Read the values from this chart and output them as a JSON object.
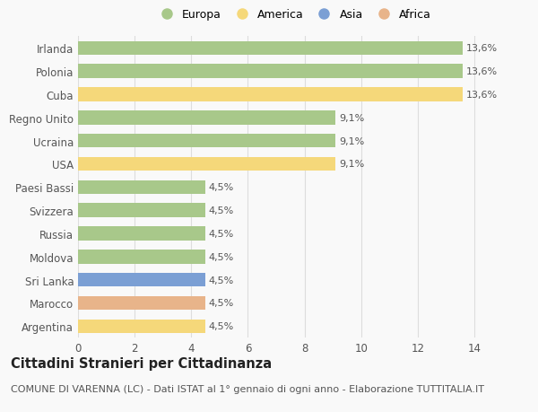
{
  "categories": [
    "Argentina",
    "Marocco",
    "Sri Lanka",
    "Moldova",
    "Russia",
    "Svizzera",
    "Paesi Bassi",
    "USA",
    "Ucraina",
    "Regno Unito",
    "Cuba",
    "Polonia",
    "Irlanda"
  ],
  "values": [
    4.5,
    4.5,
    4.5,
    4.5,
    4.5,
    4.5,
    4.5,
    9.1,
    9.1,
    9.1,
    13.6,
    13.6,
    13.6
  ],
  "colors": [
    "#f5d87a",
    "#e8b48a",
    "#7b9fd4",
    "#a8c88a",
    "#a8c88a",
    "#a8c88a",
    "#a8c88a",
    "#f5d87a",
    "#a8c88a",
    "#a8c88a",
    "#f5d87a",
    "#a8c88a",
    "#a8c88a"
  ],
  "labels": [
    "4,5%",
    "4,5%",
    "4,5%",
    "4,5%",
    "4,5%",
    "4,5%",
    "4,5%",
    "9,1%",
    "9,1%",
    "9,1%",
    "13,6%",
    "13,6%",
    "13,6%"
  ],
  "legend_labels": [
    "Europa",
    "America",
    "Asia",
    "Africa"
  ],
  "legend_colors": [
    "#a8c88a",
    "#f5d87a",
    "#7b9fd4",
    "#e8b48a"
  ],
  "title": "Cittadini Stranieri per Cittadinanza",
  "subtitle": "COMUNE DI VARENNA (LC) - Dati ISTAT al 1° gennaio di ogni anno - Elaborazione TUTTITALIA.IT",
  "xlim": [
    0,
    15.2
  ],
  "xticks": [
    0,
    2,
    4,
    6,
    8,
    10,
    12,
    14
  ],
  "bg_color": "#f9f9f9",
  "grid_color": "#dddddd",
  "text_color": "#555555",
  "bar_label_fontsize": 8,
  "tick_fontsize": 8.5,
  "title_fontsize": 10.5,
  "subtitle_fontsize": 8
}
